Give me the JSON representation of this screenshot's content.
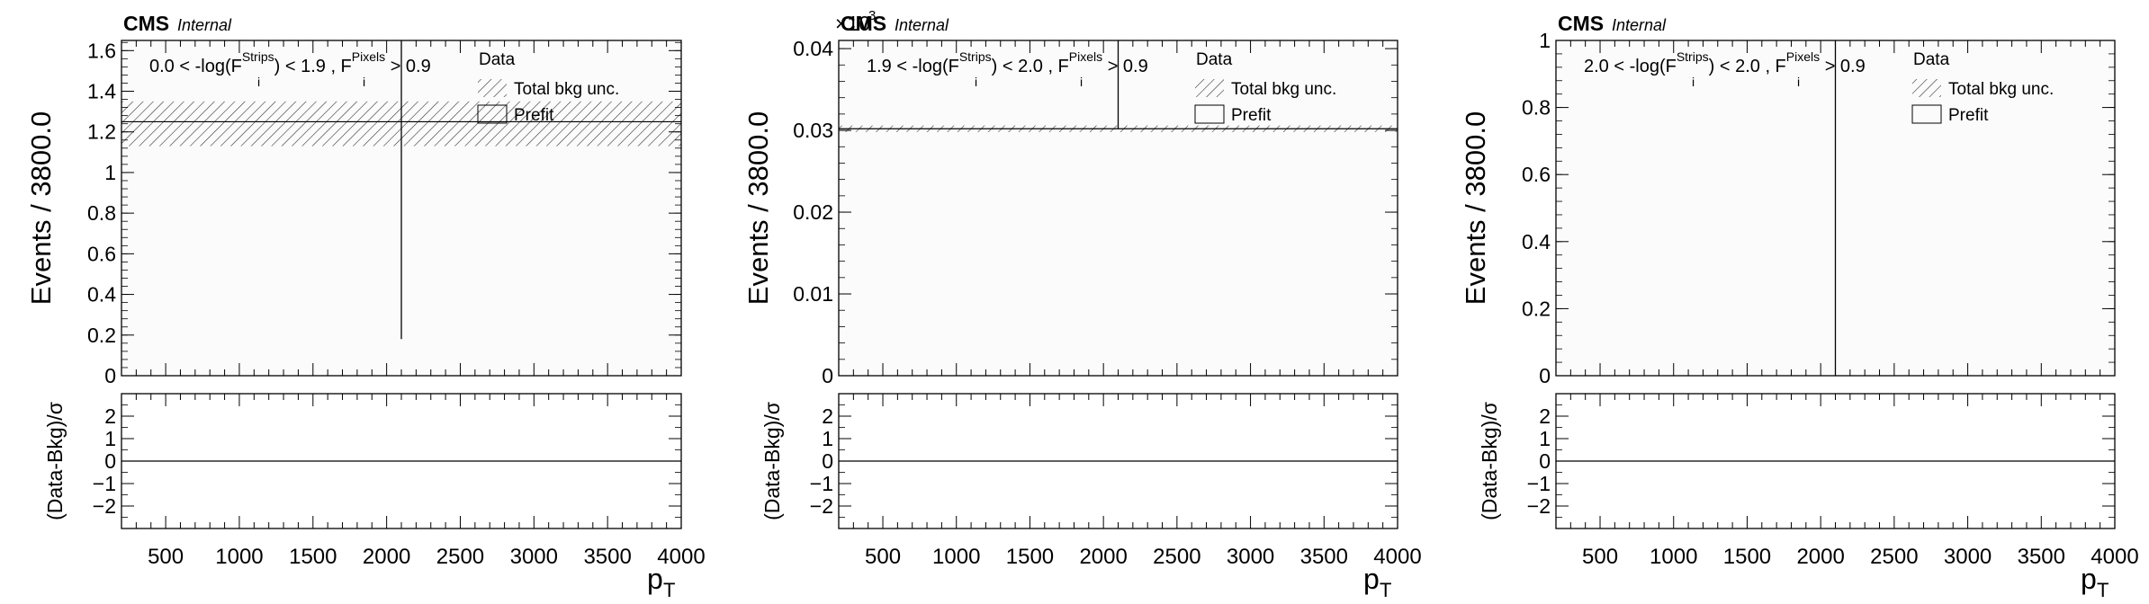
{
  "experiment": "CMS",
  "status": "Internal",
  "x_axis_label": "p",
  "x_axis_subscript": "T",
  "y_axis_label_top": "Events / 3800.0",
  "y_axis_label_ratio": "(Data-Bkg)/σ",
  "legend": {
    "data": "Data",
    "total_bkg": "Total bkg unc.",
    "prefit": "Prefit"
  },
  "colors": {
    "line": "#000000",
    "frame": "#000000",
    "hatch": "#333333",
    "fill": "#fbfbfb"
  },
  "chart_data": [
    {
      "type": "line",
      "panel": "left",
      "region": {
        "pre": "0.0 < -log(F",
        "sup1": "Strips",
        "mid": ") < 1.9 , F",
        "sup2": "Pixels",
        "post": " > 0.9"
      },
      "multiplier": "",
      "xlim": [
        200,
        4000
      ],
      "ylim": [
        0,
        1.65
      ],
      "yticks": [
        0,
        0.2,
        0.4,
        0.6,
        0.8,
        1,
        1.2,
        1.4,
        1.6
      ],
      "ytick_labels": [
        "0",
        "0.2",
        "0.4",
        "0.6",
        "0.8",
        "1",
        "1.2",
        "1.4",
        "1.6"
      ],
      "xticks": [
        500,
        1000,
        1500,
        2000,
        2500,
        3000,
        3500,
        4000
      ],
      "xtick_labels": [
        "500",
        "1000",
        "1500",
        "2000",
        "2500",
        "3000",
        "3500",
        "4000"
      ],
      "bkg_value": 1.25,
      "bkg_unc_low": 1.13,
      "bkg_unc_high": 1.35,
      "data_x": 2100,
      "data_y_low": 0.18,
      "data_y_high": 1.65,
      "ratio_ylim": [
        -3,
        3
      ],
      "ratio_yticks": [
        -2,
        -1,
        0,
        1,
        2
      ],
      "ratio_ytick_labels": [
        "−2",
        "−1",
        "0",
        "1",
        "2"
      ],
      "ratio_value": 0
    },
    {
      "type": "line",
      "panel": "middle",
      "region": {
        "pre": "1.9 < -log(F",
        "sup1": "Strips",
        "mid": ") < 2.0 , F",
        "sup2": "Pixels",
        "post": " > 0.9"
      },
      "multiplier": "×10",
      "multiplier_exp": "3",
      "xlim": [
        200,
        4000
      ],
      "ylim": [
        0,
        0.041
      ],
      "yticks": [
        0,
        0.01,
        0.02,
        0.03,
        0.04
      ],
      "ytick_labels": [
        "0",
        "0.01",
        "0.02",
        "0.03",
        "0.04"
      ],
      "xticks": [
        500,
        1000,
        1500,
        2000,
        2500,
        3000,
        3500,
        4000
      ],
      "xtick_labels": [
        "500",
        "1000",
        "1500",
        "2000",
        "2500",
        "3000",
        "3500",
        "4000"
      ],
      "bkg_value": 0.0302,
      "bkg_unc_low": 0.0298,
      "bkg_unc_high": 0.0306,
      "data_x": 2100,
      "data_y_low": 0.0302,
      "data_y_high": 0.041,
      "ratio_ylim": [
        -3,
        3
      ],
      "ratio_yticks": [
        -2,
        -1,
        0,
        1,
        2
      ],
      "ratio_ytick_labels": [
        "−2",
        "−1",
        "0",
        "1",
        "2"
      ],
      "ratio_value": 0
    },
    {
      "type": "line",
      "panel": "right",
      "region": {
        "pre": "2.0 < -log(F",
        "sup1": "Strips",
        "mid": ") < 2.0 , F",
        "sup2": "Pixels",
        "post": " > 0.9"
      },
      "multiplier": "",
      "xlim": [
        200,
        4000
      ],
      "ylim": [
        0,
        1
      ],
      "yticks": [
        0,
        0.2,
        0.4,
        0.6,
        0.8,
        1
      ],
      "ytick_labels": [
        "0",
        "0.2",
        "0.4",
        "0.6",
        "0.8",
        "1"
      ],
      "xticks": [
        500,
        1000,
        1500,
        2000,
        2500,
        3000,
        3500,
        4000
      ],
      "xtick_labels": [
        "500",
        "1000",
        "1500",
        "2000",
        "2500",
        "3000",
        "3500",
        "4000"
      ],
      "bkg_value": null,
      "bkg_unc_low": null,
      "bkg_unc_high": null,
      "data_x": 2100,
      "data_y_low": 0,
      "data_y_high": 1,
      "ratio_ylim": [
        -3,
        3
      ],
      "ratio_yticks": [
        -2,
        -1,
        0,
        1,
        2
      ],
      "ratio_ytick_labels": [
        "−2",
        "−1",
        "0",
        "1",
        "2"
      ],
      "ratio_value": 0
    }
  ]
}
